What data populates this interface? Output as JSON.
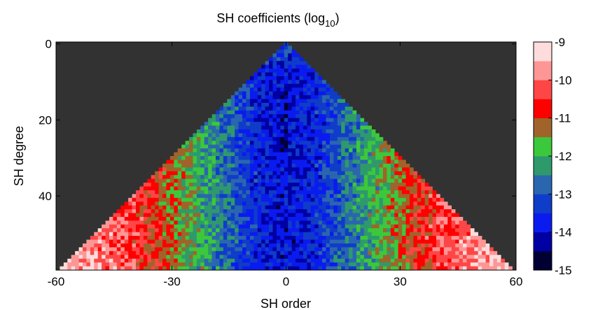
{
  "chart_data": {
    "type": "heatmap",
    "title": "SH coefficients (log",
    "title_subscript": "10",
    "title_suffix": ")",
    "xlabel": "SH order",
    "ylabel": "SH degree",
    "xlim": [
      -60,
      60
    ],
    "ylim": [
      59,
      0
    ],
    "x_ticks": [
      -60,
      -30,
      0,
      30,
      60
    ],
    "x_tick_labels": [
      "-60",
      "-30",
      "0",
      "30",
      "60"
    ],
    "y_ticks": [
      0,
      20,
      40
    ],
    "y_tick_labels": [
      "0",
      "20",
      "40"
    ],
    "n_degrees": 60,
    "cell_domain": "|order| <= degree",
    "value_units": "log10",
    "colorbar": {
      "range": [
        -15,
        -9
      ],
      "ticks": [
        -9,
        -10,
        -11,
        -12,
        -13,
        -14,
        -15
      ],
      "tick_labels": [
        "-9",
        "-10",
        "-11",
        "-12",
        "-13",
        "-14",
        "-15"
      ],
      "colors": [
        "#000033",
        "#0000a3",
        "#0a1bf0",
        "#0f3cc8",
        "#2a66b0",
        "#2e9a6c",
        "#3cc83c",
        "#a0642a",
        "#ff0000",
        "#ff4646",
        "#ff9696",
        "#ffdcdc"
      ]
    },
    "background_color": "#323232",
    "grid": false,
    "approx_values_by_order": [
      {
        "order_abs": 0,
        "log10_value": -14.0
      },
      {
        "order_abs": 8,
        "log10_value": -13.6
      },
      {
        "order_abs": 15,
        "log10_value": -12.8
      },
      {
        "order_abs": 22,
        "log10_value": -12.1
      },
      {
        "order_abs": 30,
        "log10_value": -11.2
      },
      {
        "order_abs": 40,
        "log10_value": -10.4
      },
      {
        "order_abs": 50,
        "log10_value": -9.8
      },
      {
        "order_abs": 60,
        "log10_value": -9.4
      }
    ]
  }
}
